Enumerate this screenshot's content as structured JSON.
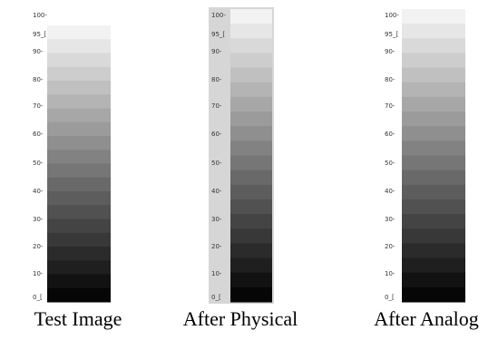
{
  "panels": [
    {
      "caption": "Test Image",
      "ticks": [
        "100-",
        "95_[",
        "90-",
        "80-",
        "70-",
        "60-",
        "50-",
        "40-",
        "30-",
        "20-",
        "10-",
        "0_["
      ]
    },
    {
      "caption": "After Physical",
      "ticks": [
        "100-",
        "95_[",
        "90-",
        "80-",
        "70-",
        "60-",
        "50-",
        "40-",
        "30-",
        "20-",
        "10-",
        "0_["
      ]
    },
    {
      "caption": "After Analog",
      "ticks": [
        "100-",
        "95_[",
        "90-",
        "80-",
        "70-",
        "60-",
        "50-",
        "40-",
        "30-",
        "20-",
        "10-",
        "0_["
      ]
    }
  ]
}
